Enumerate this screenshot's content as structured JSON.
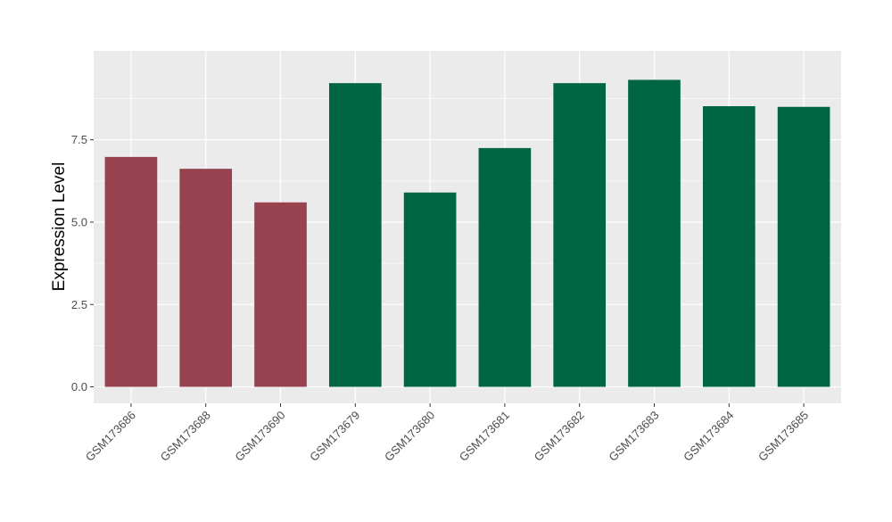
{
  "chart_data": {
    "type": "bar",
    "xlabel": "",
    "ylabel": "Expression Level",
    "ylim": [
      -0.5,
      10.2
    ],
    "yticks": [
      0.0,
      2.5,
      5.0,
      7.5
    ],
    "ytick_labels": [
      "0.0",
      "2.5",
      "5.0",
      "7.5"
    ],
    "categories": [
      "GSM173686",
      "GSM173688",
      "GSM173690",
      "GSM173679",
      "GSM173680",
      "GSM173681",
      "GSM173682",
      "GSM173683",
      "GSM173684",
      "GSM173685"
    ],
    "values": [
      6.98,
      6.62,
      5.6,
      9.22,
      5.9,
      7.25,
      9.22,
      9.32,
      8.52,
      8.5
    ],
    "groups": [
      "A",
      "A",
      "A",
      "B",
      "B",
      "B",
      "B",
      "B",
      "B",
      "B"
    ],
    "group_colors": {
      "A": "#99424F",
      "B": "#006543"
    },
    "grid": true,
    "legend": "none"
  },
  "colors": {
    "panel_background": "#EBEBEB",
    "grid_major": "#FFFFFF",
    "axis_text": "#4D4D4D",
    "title_text": "#000000"
  }
}
